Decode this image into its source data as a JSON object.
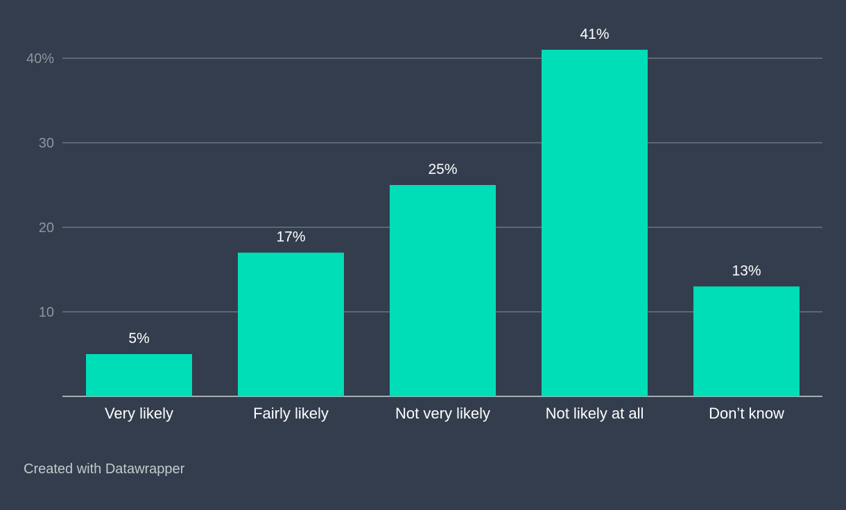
{
  "chart_data": {
    "type": "bar",
    "categories": [
      "Very likely",
      "Fairly likely",
      "Not very likely",
      "Not likely at all",
      "Don’t know"
    ],
    "values": [
      5,
      17,
      25,
      41,
      13
    ],
    "value_labels": [
      "5%",
      "17%",
      "25%",
      "41%",
      "13%"
    ],
    "y_ticks": [
      10,
      20,
      30,
      40
    ],
    "y_tick_labels": [
      "10",
      "20",
      "30",
      "40%"
    ],
    "ylim": [
      0,
      40
    ],
    "grid": true,
    "title": "",
    "xlabel": "",
    "ylabel": ""
  },
  "colors": {
    "background": "#333d4d",
    "bar": "#00deb7",
    "gridline": "#6e7580",
    "baseline": "#a8adb4",
    "tick_label": "#8f959d",
    "category_label": "#ffffff",
    "value_label": "#ffffff",
    "footer": "#c5c9ce"
  },
  "footer": {
    "credit": "Created with Datawrapper"
  }
}
